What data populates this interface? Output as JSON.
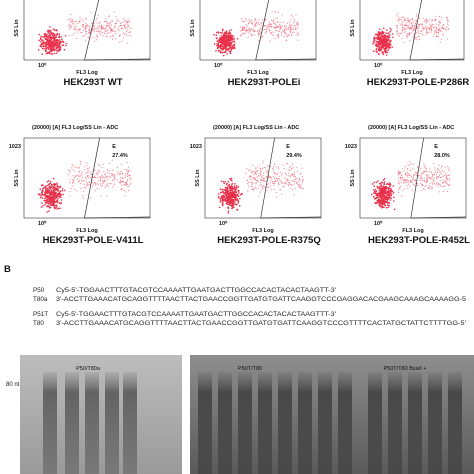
{
  "panel_a": {
    "plots": [
      {
        "label": "HEK293T WT",
        "y_axis": "SS Lin",
        "x_axis": "FL3 Log",
        "x_min": "10⁰"
      },
      {
        "label": "HEK293T-POLEi",
        "y_axis": "SS Lin",
        "x_axis": "FL3 Log",
        "x_min": "10⁰"
      },
      {
        "label": "HEK293T-POLE-P286R",
        "y_axis": "SS Lin",
        "x_axis": "FL3 Log",
        "x_min": "10⁰"
      },
      {
        "label": "HEK293T-POLE-V411L",
        "header": "(20000) [A] FL3 Log/SS Lin - ADC",
        "gate": "E",
        "percent": "27.4%",
        "y_axis": "SS Lin",
        "y_max": "1023",
        "x_axis": "FL3 Log",
        "x_min": "10⁰"
      },
      {
        "label": "HEK293T-POLE-R375Q",
        "header": "(20000) [A] FL3 Log/SS Lin - ADC",
        "gate": "E",
        "percent": "29.4%",
        "y_axis": "SS Lin",
        "y_max": "1023",
        "x_axis": "FL3 Log",
        "x_min": "10⁰"
      },
      {
        "label": "HEK293T-POLE-R452L",
        "header": "(20000) [A] FL3 Log/SS Lin - ADC",
        "gate": "E",
        "percent": "28.0%",
        "y_axis": "SS Lin",
        "y_max": "1023",
        "x_axis": "FL3 Log",
        "x_min": "10⁰"
      }
    ]
  },
  "panel_b": {
    "letter": "B",
    "sequences": [
      {
        "name": "P50",
        "text": "Cy5-5'-TGGAACTTTGTACGTCCAAAATTGAATGACTTGGCCACACTACACTAAGTT-3'"
      },
      {
        "name": "T80a",
        "text": "3'-ACCTTGAAACATGCAGGTTTTAACTTACTGAACCGGTTGATGTGATTCAAGGTCCCGAGGACACGAAGCAAAGCAAAAGG-5"
      },
      {
        "name": "P51T",
        "text": "Cy5-5'-TGGAACTTTGTACGTCCAAAATTGAATGACTTGGCCACACTACACTAAGTTT-3'"
      },
      {
        "name": "T80",
        "text": "3'-ACCTTGAAACATGCAGGTTTTAACTTACTGAACCGGTTGATGTGATTCAAGGTCCCGTTTTCACTATGCTATTCTTTTGG-5'"
      }
    ],
    "gel": {
      "marker": "80 nt",
      "lanes": [
        "P50/T80a",
        "P50T/T80",
        "P50T/T80  BsaII +"
      ]
    }
  }
}
